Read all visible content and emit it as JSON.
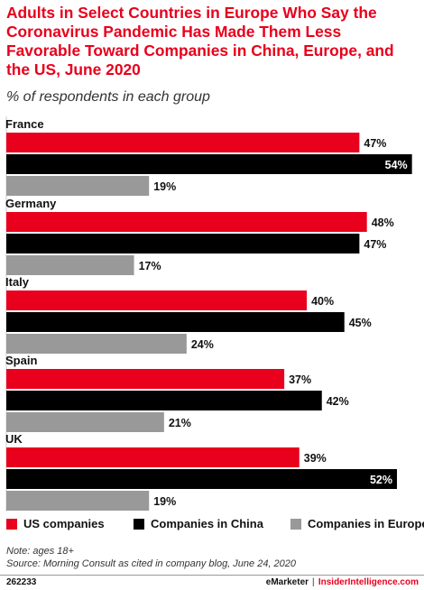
{
  "header": {
    "title": "Adults in Select Countries in Europe Who Say the Coronavirus Pandemic Has Made Them Less Favorable Toward Companies in China, Europe, and the US, June 2020",
    "subtitle": "% of respondents in each group"
  },
  "colors": {
    "us": "#e8001c",
    "china": "#000000",
    "europe": "#999999",
    "accent": "#e8001c"
  },
  "chart_data": {
    "type": "bar",
    "orientation": "horizontal",
    "categories": [
      "France",
      "Germany",
      "Italy",
      "Spain",
      "UK"
    ],
    "series": [
      {
        "name": "US companies",
        "values": [
          47,
          48,
          40,
          37,
          39
        ]
      },
      {
        "name": "Companies in China",
        "values": [
          54,
          47,
          45,
          42,
          52
        ]
      },
      {
        "name": "Companies in Europe",
        "values": [
          19,
          17,
          24,
          21,
          19
        ]
      }
    ],
    "value_suffix": "%",
    "xlim": [
      0,
      55
    ],
    "grid": false,
    "legend": "bottom"
  },
  "legend": {
    "items": [
      {
        "label": "US companies"
      },
      {
        "label": "Companies in China"
      },
      {
        "label": "Companies in Europe"
      }
    ]
  },
  "notes": {
    "note": "Note: ages 18+",
    "source": "Source: Morning Consult as cited in company blog, June 24, 2020"
  },
  "footer": {
    "chart_id": "262233",
    "brand_emarketer": "eMarketer",
    "brand_separator": "|",
    "brand_insider": "InsiderIntelligence.com"
  }
}
